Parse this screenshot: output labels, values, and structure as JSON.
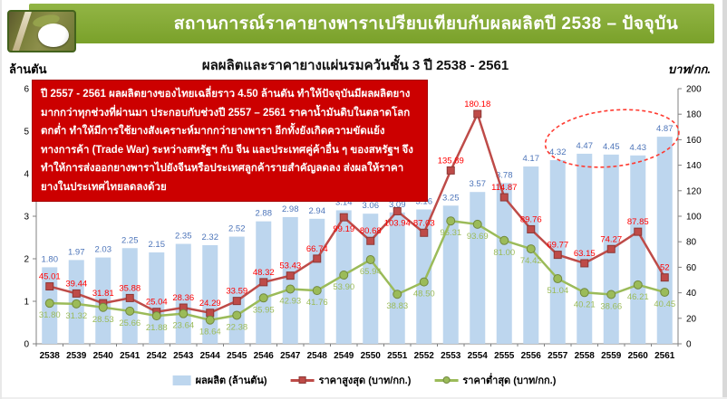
{
  "header": {
    "title": "สถานการณ์ราคายางพาราเปรียบเทียบกับผลผลิตปี  2538 – ปัจจุบัน"
  },
  "chart": {
    "title": "ผลผลิตและราคายางแผ่นรมควันชั้น 3 ปี 2538 - 2561",
    "left_unit": "ล้านตัน",
    "right_unit": "บาท/กก."
  },
  "annotation": {
    "text": "ปี 2557 - 2561 ผลผลิตยางของไทยเฉลี่ยราว 4.50 ล้านตัน ทำให้ปัจจุบันมีผลผลิตยางมากกว่าทุกช่วงที่ผ่านมา ประกอบกับช่วงปี 2557 – 2561 ราคาน้ำมันดิบในตลาดโลกตกต่ำ ทำให้มีการใช้ยางสังเคราะห์มากกว่ายางพารา อีกทั้งยังเกิดความขัดแย้งทางการค้า (Trade War) ระหว่างสหรัฐฯ กับ จีน และประเทศคู่ค้าอื่น ๆ ของสหรัฐฯ จึงทำให้การส่งออกยางพาราไปยังจีนหรือประเทศลูกค้ารายสำคัญลดลง ส่งผลให้ราคายางในประเทศไทยลดลงด้วย"
  },
  "chart_data": {
    "type": "bar",
    "categories": [
      "2538",
      "2539",
      "2540",
      "2541",
      "2542",
      "2543",
      "2544",
      "2545",
      "2546",
      "2547",
      "2548",
      "2549",
      "2550",
      "2551",
      "2552",
      "2553",
      "2554",
      "2555",
      "2556",
      "2557",
      "2558",
      "2559",
      "2560",
      "2561"
    ],
    "series": [
      {
        "name": "ผลผลิต (ล้านตัน)",
        "type": "bar",
        "axis": "left",
        "color": "#bdd6ee",
        "label_color": "#4c74b9",
        "values": [
          1.8,
          1.97,
          2.03,
          2.25,
          2.15,
          2.35,
          2.32,
          2.52,
          2.88,
          2.98,
          2.94,
          3.14,
          3.06,
          3.09,
          3.16,
          3.25,
          3.57,
          3.78,
          4.17,
          4.32,
          4.47,
          4.45,
          4.43,
          4.87
        ],
        "labels": [
          "1.80",
          "1.97",
          "2.03",
          "2.25",
          "2.15",
          "2.35",
          "2.32",
          "2.52",
          "2.88",
          "2.98",
          "2.94",
          "3.14",
          "3.06",
          "3.09",
          "3.16",
          "3.25",
          "3.57",
          "3.78",
          "4.17",
          "4.32",
          "4.47",
          "4.45",
          "4.43",
          "4.87"
        ]
      },
      {
        "name": "ราคาสูงสุด (บาท/กก.)",
        "type": "line",
        "axis": "right",
        "marker": "square",
        "color": "#be4b48",
        "label_color": "#ff0000",
        "values": [
          45.01,
          39.44,
          31.81,
          35.88,
          25.04,
          28.36,
          24.29,
          33.59,
          48.32,
          53.43,
          66.74,
          99.19,
          80.68,
          103.94,
          87.03,
          135.89,
          180.18,
          114.87,
          89.76,
          69.77,
          63.15,
          74.27,
          87.85,
          52
        ],
        "labels": [
          "45.01",
          "39.44",
          "31.81",
          "35.88",
          "25.04",
          "28.36",
          "24.29",
          "33.59",
          "48.32",
          "53.43",
          "66.74",
          "99.19",
          "80.68",
          "103.94",
          "87.03",
          "135.89",
          "180.18",
          "114.87",
          "89.76",
          "69.77",
          "63.15",
          "74.27",
          "87.85",
          "52"
        ],
        "labels_below_categories": [
          "2549",
          "2551"
        ]
      },
      {
        "name": "ราคาต่ำสุด (บาท/กก.)",
        "type": "line",
        "axis": "right",
        "marker": "circle",
        "color": "#9bbb59",
        "label_color": "#9bbb59",
        "values": [
          31.8,
          31.32,
          28.53,
          25.66,
          21.88,
          23.64,
          18.64,
          22.38,
          35.95,
          42.93,
          41.76,
          53.9,
          65.94,
          38.83,
          48.5,
          96.31,
          93.69,
          81.0,
          74.42,
          51.04,
          40.21,
          38.66,
          46.21,
          40.45
        ],
        "labels": [
          "31.80",
          "31.32",
          "28.53",
          "25.66",
          "21.88",
          "23.64",
          "18.64",
          "22.38",
          "35.95",
          "42.93",
          "41.76",
          "53.90",
          "65.94",
          "38.83",
          "48.50",
          "96.31",
          "93.69",
          "81.00",
          "74.42",
          "51.04",
          "40.21",
          "38.66",
          "46.21",
          "40.45"
        ]
      }
    ],
    "left_axis": {
      "min": 0,
      "max": 6,
      "step": 1,
      "ticks": [
        "0",
        "1",
        "2",
        "3",
        "4",
        "5",
        "6"
      ]
    },
    "right_axis": {
      "min": 0,
      "max": 200,
      "step": 20,
      "ticks": [
        "0",
        "20",
        "40",
        "60",
        "80",
        "100",
        "120",
        "140",
        "160",
        "180",
        "200"
      ]
    },
    "grid": false,
    "legend_position": "bottom",
    "highlight": {
      "categories": [
        "2557",
        "2558",
        "2559",
        "2560",
        "2561"
      ],
      "style": "dashed-red-ellipse"
    }
  },
  "legend": {
    "items": [
      {
        "label": "ผลผลิต (ล้านตัน)"
      },
      {
        "label": "ราคาสูงสุด (บาท/กก.)"
      },
      {
        "label": "ราคาต่ำสุด (บาท/กก.)"
      }
    ]
  }
}
